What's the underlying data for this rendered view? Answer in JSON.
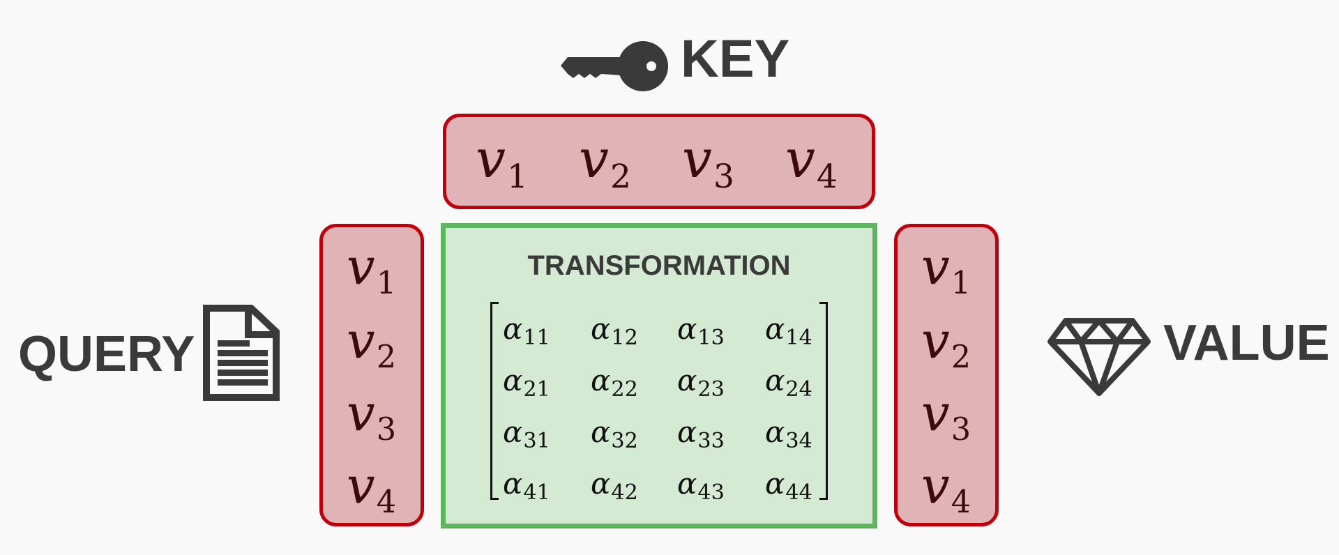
{
  "labels": {
    "key": "KEY",
    "query": "QUERY",
    "value": "VALUE"
  },
  "icons": {
    "key": "key-icon",
    "query": "document-icon",
    "value": "diamond-icon"
  },
  "vectors": {
    "key": [
      {
        "base": "v",
        "sub": "1"
      },
      {
        "base": "v",
        "sub": "2"
      },
      {
        "base": "v",
        "sub": "3"
      },
      {
        "base": "v",
        "sub": "4"
      }
    ],
    "query": [
      {
        "base": "v",
        "sub": "1"
      },
      {
        "base": "v",
        "sub": "2"
      },
      {
        "base": "v",
        "sub": "3"
      },
      {
        "base": "v",
        "sub": "4"
      }
    ],
    "value": [
      {
        "base": "v",
        "sub": "1"
      },
      {
        "base": "v",
        "sub": "2"
      },
      {
        "base": "v",
        "sub": "3"
      },
      {
        "base": "v",
        "sub": "4"
      }
    ]
  },
  "transformation": {
    "title": "TRANSFORMATION",
    "matrix": [
      [
        {
          "base": "α",
          "sub": "11"
        },
        {
          "base": "α",
          "sub": "12"
        },
        {
          "base": "α",
          "sub": "13"
        },
        {
          "base": "α",
          "sub": "14"
        }
      ],
      [
        {
          "base": "α",
          "sub": "21"
        },
        {
          "base": "α",
          "sub": "22"
        },
        {
          "base": "α",
          "sub": "23"
        },
        {
          "base": "α",
          "sub": "24"
        }
      ],
      [
        {
          "base": "α",
          "sub": "31"
        },
        {
          "base": "α",
          "sub": "32"
        },
        {
          "base": "α",
          "sub": "33"
        },
        {
          "base": "α",
          "sub": "34"
        }
      ],
      [
        {
          "base": "α",
          "sub": "41"
        },
        {
          "base": "α",
          "sub": "42"
        },
        {
          "base": "α",
          "sub": "43"
        },
        {
          "base": "α",
          "sub": "44"
        }
      ]
    ]
  },
  "colors": {
    "background": "#f9f9f9",
    "label_text": "#3a3a3a",
    "vector_fill": "#e0b4b6",
    "vector_border": "#c0000b",
    "matrix_fill": "#d4ead3",
    "matrix_border": "#5db65d"
  }
}
